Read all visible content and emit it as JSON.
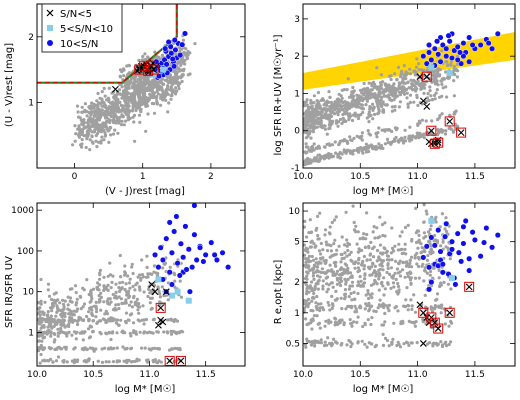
{
  "figure": {
    "legend": [
      {
        "label": "S/N<5",
        "marker": "cross",
        "color": "#000000"
      },
      {
        "label": "5<S/N<10",
        "marker": "square",
        "color": "#87ceeb"
      },
      {
        "label": "10<S/N",
        "marker": "circle",
        "color": "#0000ff"
      }
    ]
  },
  "colors": {
    "background_points": "#a0a0a0",
    "high_sn": "#1010ee",
    "mid_sn": "#87ceeb",
    "low_sn": "#000000",
    "selection_box_red": "#e00000",
    "selection_box_green": "#2a8a2a",
    "main_sequence_band": "#ffd400",
    "flagged_box": "#e00000"
  },
  "chart_data": [
    {
      "id": "uvj",
      "type": "scatter",
      "title": "",
      "xlabel": "(V - J)rest [mag]",
      "ylabel": "(U - V)rest [mag]",
      "xlim": [
        -0.55,
        2.5
      ],
      "ylim": [
        0.0,
        2.5
      ],
      "xticks": [
        0,
        1,
        2
      ],
      "yticks": [
        1,
        2
      ],
      "ytick_labels": [
        "1",
        "2"
      ],
      "log_y": false,
      "legend_position": "top-left",
      "selection_box": [
        [
          -0.55,
          1.3
        ],
        [
          0.7,
          1.3
        ],
        [
          1.5,
          2.0
        ],
        [
          1.5,
          2.5
        ]
      ],
      "background_count": 1200,
      "series": [
        {
          "group": "10<S/N",
          "x": [
            1.12,
            1.18,
            1.22,
            1.25,
            1.28,
            1.3,
            1.32,
            1.35,
            1.38,
            1.4,
            1.42,
            1.45,
            1.48,
            1.5,
            1.2,
            1.27,
            1.34,
            1.41,
            1.46,
            1.52,
            1.55,
            1.3,
            1.36,
            1.44,
            1.24,
            1.33,
            1.38,
            1.47,
            1.58,
            1.62
          ],
          "y": [
            1.45,
            1.5,
            1.38,
            1.55,
            1.6,
            1.42,
            1.65,
            1.58,
            1.7,
            1.5,
            1.75,
            1.62,
            1.8,
            1.68,
            1.62,
            1.48,
            1.78,
            1.85,
            1.55,
            1.9,
            1.72,
            1.52,
            1.45,
            1.66,
            1.4,
            1.82,
            1.92,
            1.95,
            1.88,
            2.05
          ]
        },
        {
          "group": "5<S/N<10",
          "x": [
            1.15,
            1.3
          ],
          "y": [
            1.42,
            1.5
          ]
        },
        {
          "group": "S/N<5",
          "x": [
            0.6,
            0.92,
            1.0,
            1.05,
            1.08,
            1.12,
            1.15,
            0.98,
            1.1,
            1.2,
            0.95
          ],
          "y": [
            1.2,
            1.48,
            1.5,
            1.58,
            1.45,
            1.55,
            1.6,
            1.55,
            1.52,
            1.55,
            1.52
          ]
        },
        {
          "group": "flagged",
          "x": [
            0.95,
            1.02,
            1.08,
            1.12,
            1.16
          ],
          "y": [
            1.5,
            1.55,
            1.48,
            1.56,
            1.5
          ]
        }
      ]
    },
    {
      "id": "sfr",
      "type": "scatter",
      "title": "",
      "xlabel": "log M* [M☉]",
      "ylabel": "log SFR IR+UV [M☉yr⁻¹]",
      "xlim": [
        10.0,
        11.85
      ],
      "ylim": [
        -1.0,
        3.4
      ],
      "xticks": [
        10.0,
        10.5,
        11.0,
        11.5
      ],
      "xtick_labels": [
        "10.0",
        "10.5",
        "11.0",
        "11.5"
      ],
      "yticks": [
        -1,
        0,
        1,
        2,
        3
      ],
      "ytick_labels": [
        "-1",
        "0",
        "1",
        "2",
        "3"
      ],
      "log_y": false,
      "main_sequence_band": {
        "x": [
          10.0,
          11.85
        ],
        "low": [
          1.1,
          1.9
        ],
        "high": [
          1.55,
          2.65
        ]
      },
      "background_count": 1150,
      "series": [
        {
          "group": "10<S/N",
          "x": [
            11.05,
            11.1,
            11.12,
            11.15,
            11.18,
            11.2,
            11.22,
            11.25,
            11.28,
            11.3,
            11.32,
            11.35,
            11.38,
            11.4,
            11.42,
            11.45,
            11.5,
            11.55,
            11.6,
            11.65,
            11.7,
            11.2,
            11.3,
            11.4,
            11.1,
            11.15,
            11.25,
            11.35,
            11.45,
            11.08,
            11.17,
            11.27,
            11.37,
            11.48,
            11.62
          ],
          "y": [
            2.0,
            2.1,
            1.9,
            2.2,
            2.05,
            1.85,
            2.3,
            2.0,
            2.4,
            1.95,
            2.15,
            2.25,
            1.8,
            2.35,
            2.1,
            2.5,
            2.2,
            2.3,
            2.45,
            2.2,
            2.6,
            2.5,
            2.6,
            2.0,
            2.3,
            1.75,
            2.2,
            1.9,
            1.85,
            1.8,
            2.4,
            2.55,
            2.1,
            2.3,
            2.35
          ]
        },
        {
          "group": "5<S/N<10",
          "x": [
            11.12,
            11.28
          ],
          "y": [
            1.7,
            1.55
          ]
        },
        {
          "group": "S/N<5",
          "x": [
            11.02,
            11.05,
            11.08,
            11.1,
            11.12,
            11.15,
            11.18
          ],
          "y": [
            1.45,
            0.8,
            0.65,
            -0.3,
            -0.35,
            -0.3,
            -0.25
          ]
        },
        {
          "group": "flagged",
          "x": [
            11.08,
            11.12,
            11.28,
            11.38,
            11.15,
            11.18
          ],
          "y": [
            1.45,
            0.0,
            0.25,
            -0.05,
            -0.35,
            -0.32
          ]
        }
      ]
    },
    {
      "id": "ratio",
      "type": "scatter",
      "title": "",
      "xlabel": "log M* [M☉]",
      "ylabel": "SFR IR/SFR UV",
      "xlim": [
        10.0,
        11.85
      ],
      "ylim": [
        0.15,
        1500
      ],
      "xticks": [
        10.0,
        10.5,
        11.0,
        11.5
      ],
      "xtick_labels": [
        "10.0",
        "10.5",
        "11.0",
        "11.5"
      ],
      "yticks": [
        1,
        10,
        100,
        1000
      ],
      "ytick_labels": [
        "1",
        "10",
        "100",
        "1000"
      ],
      "log_y": true,
      "background_count": 750,
      "series": [
        {
          "group": "10<S/N",
          "x": [
            11.05,
            11.08,
            11.1,
            11.12,
            11.15,
            11.18,
            11.2,
            11.22,
            11.25,
            11.28,
            11.3,
            11.32,
            11.35,
            11.38,
            11.4,
            11.42,
            11.45,
            11.5,
            11.55,
            11.6,
            11.65,
            11.7,
            11.12,
            11.2,
            11.3,
            11.4,
            11.18,
            11.24,
            11.33,
            11.45,
            11.15,
            11.27,
            11.36,
            11.48,
            11.58
          ],
          "y": [
            80,
            40,
            120,
            60,
            200,
            30,
            90,
            300,
            50,
            150,
            70,
            400,
            110,
            40,
            250,
            60,
            130,
            80,
            160,
            60,
            90,
            40,
            20,
            15,
            30,
            1300,
            500,
            700,
            35,
            120,
            10,
            25,
            10,
            55,
            80
          ]
        },
        {
          "group": "5<S/N<10",
          "x": [
            11.08,
            11.2,
            11.25,
            11.35
          ],
          "y": [
            20,
            8,
            10,
            6
          ]
        },
        {
          "group": "S/N<5",
          "x": [
            11.02,
            11.05,
            11.08,
            11.1,
            11.12,
            11.15
          ],
          "y": [
            15,
            10,
            1.5,
            2.0,
            1.8,
            10
          ]
        },
        {
          "group": "flagged",
          "x": [
            11.1,
            11.18,
            11.28
          ],
          "y": [
            4.0,
            0.2,
            0.2
          ]
        }
      ]
    },
    {
      "id": "size",
      "type": "scatter",
      "title": "",
      "xlabel": "log M* [M☉]",
      "ylabel": "R e,opt [kpc]",
      "xlim": [
        10.0,
        11.85
      ],
      "ylim": [
        0.3,
        12
      ],
      "xticks": [
        10.0,
        10.5,
        11.0,
        11.5
      ],
      "xtick_labels": [
        "10.0",
        "10.5",
        "11.0",
        "11.5"
      ],
      "yticks": [
        0.5,
        1,
        2,
        5,
        10
      ],
      "ytick_labels": [
        "0.5",
        "1",
        "2",
        "5",
        "10"
      ],
      "log_y": true,
      "background_count": 900,
      "series": [
        {
          "group": "10<S/N",
          "x": [
            11.05,
            11.08,
            11.1,
            11.12,
            11.15,
            11.18,
            11.2,
            11.22,
            11.25,
            11.28,
            11.3,
            11.32,
            11.35,
            11.38,
            11.4,
            11.42,
            11.45,
            11.5,
            11.55,
            11.6,
            11.65,
            11.7,
            11.12,
            11.2,
            11.3,
            11.4,
            11.18,
            11.24,
            11.33,
            11.45,
            11.15,
            11.27,
            11.36,
            11.48,
            11.58,
            11.1,
            11.22
          ],
          "y": [
            3.5,
            4.5,
            2.8,
            5.5,
            3.0,
            6.5,
            4.0,
            2.5,
            7.5,
            3.8,
            5.0,
            2.2,
            6.0,
            3.2,
            4.8,
            8.0,
            2.6,
            5.2,
            3.6,
            6.8,
            4.4,
            5.8,
            2.0,
            3.3,
            4.2,
            7.0,
            2.9,
            5.6,
            1.9,
            3.4,
            4.6,
            2.4,
            3.9,
            6.2,
            4.9,
            1.7,
            3.0
          ]
        },
        {
          "group": "5<S/N<10",
          "x": [
            11.12,
            11.3
          ],
          "y": [
            8.0,
            2.2
          ]
        },
        {
          "group": "S/N<5",
          "x": [
            11.02,
            11.05,
            11.08,
            11.1
          ],
          "y": [
            1.2,
            0.5,
            0.9,
            0.8
          ]
        },
        {
          "group": "flagged",
          "x": [
            11.05,
            11.12,
            11.15,
            11.18,
            11.28,
            11.45
          ],
          "y": [
            1.0,
            0.9,
            0.8,
            0.7,
            1.0,
            1.8
          ]
        }
      ]
    }
  ]
}
